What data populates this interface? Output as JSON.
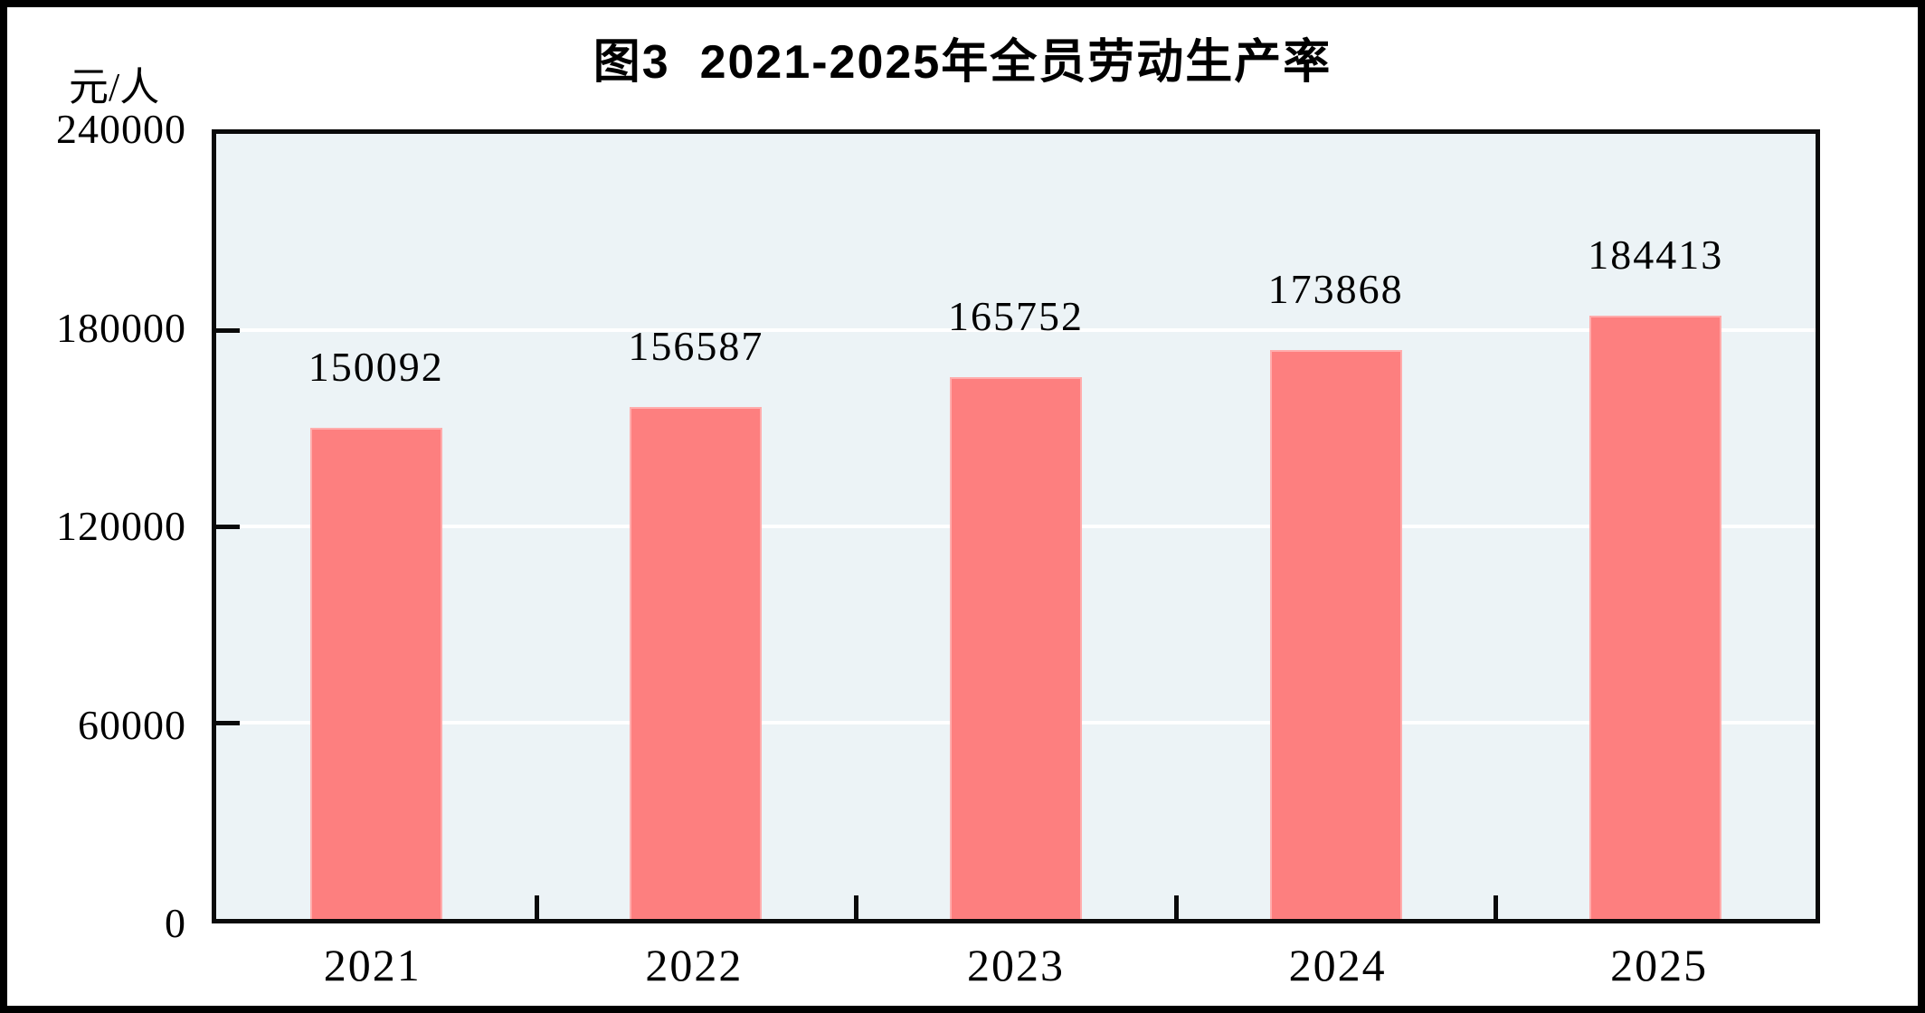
{
  "chart_data": {
    "type": "bar",
    "title": "图3  2021-2025年全员劳动生产率",
    "unit_label": "元/人",
    "categories": [
      "2021",
      "2022",
      "2023",
      "2024",
      "2025"
    ],
    "values": [
      150092,
      156587,
      165752,
      173868,
      184413
    ],
    "data_labels": [
      "150092",
      "156587",
      "165752",
      "173868",
      "184413"
    ],
    "ylim": [
      0,
      240000
    ],
    "ytick_interval": 60000,
    "ytick_labels_top_to_bottom": [
      "240000",
      "180000",
      "120000",
      "60000",
      "0"
    ],
    "xlabel": "",
    "ylabel": "元/人",
    "legend": "none",
    "grid": "horizontal-white-gridlines",
    "colors": {
      "bar_fill": "#fd7f7f",
      "bar_border": "#ffacac",
      "plot_background": "#ecf3f6",
      "gridline": "#ffffff",
      "axis": "#0a0a0a",
      "text": "#000000",
      "figure_border": "#000000",
      "figure_background": "#ffffff"
    }
  }
}
